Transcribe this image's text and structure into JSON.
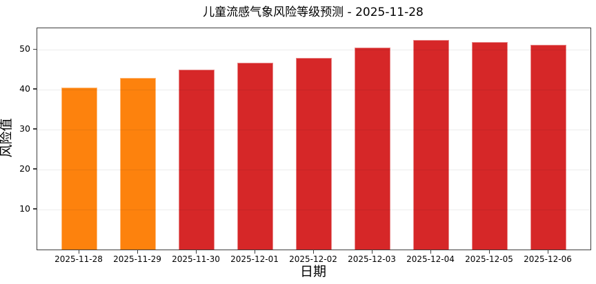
{
  "chart_data": {
    "type": "bar",
    "title": "儿童流感气象风险等级预测 - 2025-11-28",
    "xlabel": "日期",
    "ylabel": "风险值",
    "categories": [
      "2025-11-28",
      "2025-11-29",
      "2025-11-30",
      "2025-12-01",
      "2025-12-02",
      "2025-12-03",
      "2025-12-04",
      "2025-12-05",
      "2025-12-06"
    ],
    "values": [
      40.5,
      43.0,
      45.1,
      46.7,
      48.0,
      50.5,
      52.4,
      51.9,
      51.3
    ],
    "bar_colors": [
      "#fd820d",
      "#fd820d",
      "#d62728",
      "#d62728",
      "#d62728",
      "#d62728",
      "#d62728",
      "#d62728",
      "#d62728"
    ],
    "yticks": [
      10,
      20,
      30,
      40,
      50
    ],
    "ylim": [
      0,
      55.4
    ],
    "grid": "horizontal",
    "legend": "none"
  },
  "colors": {
    "orange_bar": "#fd820d",
    "red_bar": "#d62728",
    "spine": "#3d3d3d",
    "gridline": "#ededed",
    "text": "#000000",
    "background": "#ffffff"
  }
}
